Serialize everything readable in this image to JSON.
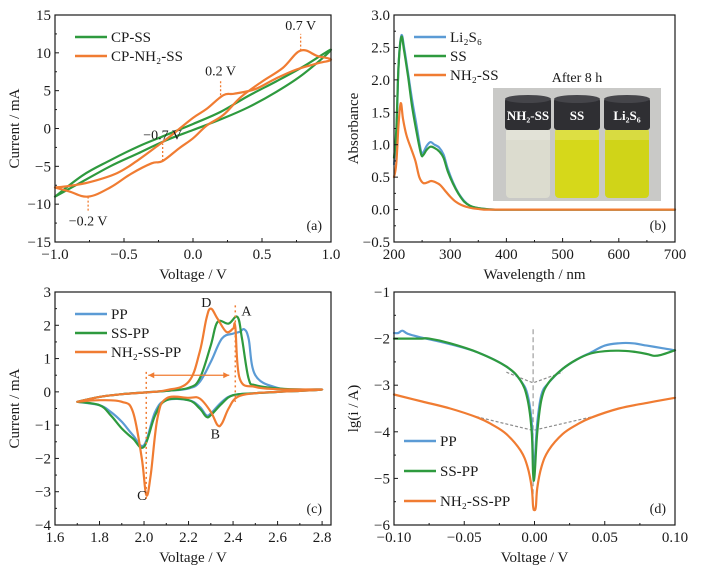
{
  "colors": {
    "blue": "#5b9bd5",
    "green": "#2e9a3e",
    "orange": "#f07c32",
    "gray_dash": "#8c8c8c"
  },
  "chart_data": [
    {
      "id": "a",
      "type": "line",
      "panel_label": "(a)",
      "xlabel": "Voltage / V",
      "ylabel": "Current / mA",
      "xlim": [
        -1.0,
        1.0
      ],
      "ylim": [
        -15,
        15
      ],
      "xticks": [
        -1.0,
        -0.5,
        0.0,
        0.5,
        1.0
      ],
      "xtick_labels": [
        "−1.0",
        "−0.5",
        "0.0",
        "0.5",
        "1.0"
      ],
      "yticks": [
        -15,
        -10,
        -5,
        0,
        5,
        10,
        15
      ],
      "ytick_labels": [
        "−15",
        "−10",
        "−5",
        "0",
        "5",
        "10",
        "15"
      ],
      "legend_position": "top-left",
      "series": [
        {
          "name": "CP-SS",
          "color_key": "green",
          "x": [
            -1.0,
            -0.8,
            -0.6,
            -0.4,
            -0.2,
            0.0,
            0.2,
            0.4,
            0.6,
            0.8,
            1.0,
            0.8,
            0.6,
            0.4,
            0.2,
            0.0,
            -0.2,
            -0.4,
            -0.6,
            -0.8,
            -1.0
          ],
          "y": [
            -9.0,
            -7.0,
            -5.0,
            -3.3,
            -1.6,
            -0.2,
            1.2,
            2.8,
            4.8,
            7.2,
            10.4,
            8.2,
            6.2,
            4.3,
            2.2,
            0.6,
            -0.9,
            -2.4,
            -4.2,
            -6.2,
            -9.0
          ]
        },
        {
          "name": "CP-NH₂-SS",
          "color_key": "orange",
          "x": [
            -1.0,
            -0.9,
            -0.76,
            -0.6,
            -0.45,
            -0.3,
            -0.22,
            -0.1,
            0.0,
            0.1,
            0.22,
            0.35,
            0.5,
            0.65,
            0.78,
            0.9,
            1.0,
            0.9,
            0.75,
            0.6,
            0.45,
            0.3,
            0.22,
            0.1,
            0.0,
            -0.15,
            -0.25,
            -0.4,
            -0.55,
            -0.75,
            -0.9,
            -1.0
          ],
          "y": [
            -7.8,
            -8.3,
            -9.0,
            -7.8,
            -6.0,
            -4.6,
            -4.3,
            -2.6,
            -1.3,
            0.4,
            1.8,
            4.2,
            6.2,
            8.0,
            10.3,
            9.6,
            9.1,
            8.6,
            7.8,
            6.6,
            5.2,
            4.6,
            4.4,
            2.6,
            1.4,
            -0.8,
            -2.2,
            -4.2,
            -5.9,
            -7.1,
            -7.6,
            -7.8
          ]
        }
      ],
      "annotations": [
        {
          "text": "0.7 V",
          "x": 0.78,
          "y_from": 10.3,
          "y_to": 12.5
        },
        {
          "text": "0.2 V",
          "x": 0.2,
          "y_from": 4.4,
          "y_to": 6.5
        },
        {
          "text": "−0.7 V",
          "x": -0.22,
          "y_from": -4.3,
          "y_to": -2.0
        },
        {
          "text": "−0.2 V",
          "x": -0.76,
          "y_from": -9.0,
          "y_to": -11.0
        }
      ]
    },
    {
      "id": "b",
      "type": "line",
      "panel_label": "(b)",
      "xlabel": "Wavelength / nm",
      "ylabel": "Absorbance",
      "xlim": [
        200,
        700
      ],
      "ylim": [
        -0.5,
        3.0
      ],
      "xticks": [
        200,
        300,
        400,
        500,
        600,
        700
      ],
      "xtick_labels": [
        "200",
        "300",
        "400",
        "500",
        "600",
        "700"
      ],
      "yticks": [
        -0.5,
        0.0,
        0.5,
        1.0,
        1.5,
        2.0,
        2.5,
        3.0
      ],
      "ytick_labels": [
        "−0.5",
        "0.0",
        "0.5",
        "1.0",
        "1.5",
        "2.0",
        "2.5",
        "3.0"
      ],
      "legend_position": "top-left",
      "series": [
        {
          "name": "Li₂S₆",
          "color_key": "blue",
          "x": [
            200,
            204,
            208,
            213,
            218,
            225,
            232,
            240,
            248,
            252,
            258,
            265,
            272,
            280,
            288,
            296,
            305,
            315,
            325,
            335,
            345,
            360,
            380,
            400,
            500,
            600,
            700
          ],
          "y": [
            0.7,
            1.1,
            2.2,
            2.68,
            2.5,
            2.1,
            1.7,
            1.3,
            0.9,
            0.88,
            0.98,
            1.04,
            1.0,
            0.96,
            0.85,
            0.62,
            0.42,
            0.25,
            0.13,
            0.06,
            0.03,
            0.01,
            0.0,
            0.0,
            0.0,
            0.0,
            0.0
          ]
        },
        {
          "name": "SS",
          "color_key": "green",
          "x": [
            200,
            204,
            208,
            213,
            218,
            225,
            232,
            240,
            248,
            252,
            258,
            265,
            272,
            280,
            288,
            296,
            305,
            315,
            325,
            335,
            345,
            360,
            380,
            400,
            500,
            600,
            700
          ],
          "y": [
            0.8,
            1.2,
            2.2,
            2.66,
            2.45,
            2.05,
            1.6,
            1.2,
            0.86,
            0.84,
            0.92,
            0.97,
            0.95,
            0.9,
            0.8,
            0.58,
            0.4,
            0.24,
            0.12,
            0.06,
            0.03,
            0.01,
            0.0,
            0.0,
            0.0,
            0.0,
            0.0
          ]
        },
        {
          "name": "NH₂-SS",
          "color_key": "orange",
          "x": [
            200,
            204,
            208,
            212,
            216,
            222,
            230,
            238,
            245,
            252,
            260,
            266,
            274,
            282,
            290,
            300,
            310,
            320,
            330,
            340,
            350,
            360,
            380,
            400,
            500,
            600,
            700
          ],
          "y": [
            0.5,
            0.7,
            1.3,
            1.64,
            1.4,
            1.15,
            0.95,
            0.75,
            0.5,
            0.41,
            0.42,
            0.44,
            0.42,
            0.38,
            0.3,
            0.2,
            0.12,
            0.07,
            0.04,
            0.02,
            0.01,
            0.0,
            0.0,
            0.0,
            0.0,
            0.0,
            0.0
          ]
        }
      ],
      "inset": {
        "title": "After 8 h",
        "vials": [
          {
            "label": "NH₂-SS",
            "liquid_color": "#dcdccf"
          },
          {
            "label": "SS",
            "liquid_color": "#d6d81a"
          },
          {
            "label": "Li₂S₆",
            "liquid_color": "#d0d418"
          }
        ]
      }
    },
    {
      "id": "c",
      "type": "line",
      "panel_label": "(c)",
      "xlabel": "Voltage / V",
      "ylabel": "Current / mA",
      "xlim": [
        1.6,
        2.84
      ],
      "ylim": [
        -4,
        3
      ],
      "xticks": [
        1.6,
        1.8,
        2.0,
        2.2,
        2.4,
        2.6,
        2.8
      ],
      "xtick_labels": [
        "1.6",
        "1.8",
        "2.0",
        "2.2",
        "2.4",
        "2.6",
        "2.8"
      ],
      "yticks": [
        -4,
        -3,
        -2,
        -1,
        0,
        1,
        2,
        3
      ],
      "ytick_labels": [
        "−4",
        "−3",
        "−2",
        "−1",
        "0",
        "1",
        "2",
        "3"
      ],
      "legend_position": "top-left",
      "series": [
        {
          "name": "PP",
          "color_key": "blue",
          "x": [
            1.7,
            1.8,
            1.9,
            2.0,
            2.1,
            2.2,
            2.25,
            2.3,
            2.35,
            2.4,
            2.43,
            2.45,
            2.47,
            2.5,
            2.6,
            2.7,
            2.8,
            2.7,
            2.6,
            2.5,
            2.4,
            2.35,
            2.3,
            2.28,
            2.25,
            2.2,
            2.1,
            2.05,
            2.0,
            1.95,
            1.9,
            1.85,
            1.8,
            1.7
          ],
          "y": [
            -0.3,
            -0.15,
            -0.07,
            -0.02,
            0.03,
            0.1,
            0.3,
            0.9,
            1.6,
            1.75,
            1.8,
            1.88,
            1.6,
            0.5,
            0.12,
            0.07,
            0.07,
            0.03,
            0.0,
            -0.04,
            -0.1,
            -0.3,
            -0.65,
            -0.7,
            -0.45,
            -0.25,
            -0.25,
            -0.6,
            -1.6,
            -1.3,
            -0.9,
            -0.6,
            -0.4,
            -0.3
          ]
        },
        {
          "name": "SS-PP",
          "color_key": "green",
          "x": [
            1.7,
            1.8,
            1.9,
            2.0,
            2.1,
            2.2,
            2.25,
            2.3,
            2.33,
            2.38,
            2.42,
            2.44,
            2.47,
            2.5,
            2.6,
            2.7,
            2.8,
            2.7,
            2.6,
            2.5,
            2.4,
            2.35,
            2.3,
            2.28,
            2.25,
            2.2,
            2.1,
            2.05,
            2.0,
            1.95,
            1.9,
            1.85,
            1.8,
            1.7
          ],
          "y": [
            -0.3,
            -0.15,
            -0.07,
            -0.02,
            0.03,
            0.12,
            0.4,
            1.4,
            2.1,
            2.05,
            2.25,
            1.6,
            0.4,
            0.2,
            0.1,
            0.07,
            0.07,
            0.03,
            0.0,
            -0.04,
            -0.1,
            -0.35,
            -0.7,
            -0.75,
            -0.5,
            -0.25,
            -0.25,
            -0.7,
            -1.65,
            -1.4,
            -1.1,
            -0.7,
            -0.4,
            -0.3
          ]
        },
        {
          "name": "NH₂-SS-PP",
          "color_key": "orange",
          "x": [
            1.7,
            1.8,
            1.9,
            2.0,
            2.1,
            2.2,
            2.25,
            2.28,
            2.3,
            2.33,
            2.37,
            2.4,
            2.41,
            2.43,
            2.5,
            2.6,
            2.7,
            2.8,
            2.7,
            2.6,
            2.5,
            2.42,
            2.38,
            2.35,
            2.33,
            2.3,
            2.25,
            2.2,
            2.1,
            2.06,
            2.03,
            2.01,
            1.99,
            1.95,
            1.9,
            1.8,
            1.7
          ],
          "y": [
            -0.3,
            -0.15,
            -0.07,
            -0.02,
            0.05,
            0.3,
            1.2,
            2.2,
            2.5,
            2.2,
            1.8,
            1.9,
            1.95,
            0.4,
            0.15,
            0.08,
            0.07,
            0.07,
            0.03,
            0.0,
            -0.04,
            -0.15,
            -0.5,
            -0.95,
            -1.0,
            -0.6,
            -0.2,
            -0.18,
            -0.2,
            -0.8,
            -2.5,
            -3.1,
            -2.0,
            -0.6,
            -0.3,
            -0.25,
            -0.3
          ]
        }
      ],
      "annotations": [
        {
          "text": "A",
          "x": 2.46,
          "y": 2.3
        },
        {
          "text": "B",
          "x": 2.32,
          "y": -1.4
        },
        {
          "text": "C",
          "x": 1.99,
          "y": -3.25
        },
        {
          "text": "D",
          "x": 2.28,
          "y": 2.55
        }
      ],
      "guides": {
        "vline_x1": 2.01,
        "vline_x2": 2.41,
        "arrow_y": 0.5
      }
    },
    {
      "id": "d",
      "type": "line",
      "panel_label": "(d)",
      "xlabel": "Voltage / V",
      "ylabel": "lg(i / A)",
      "xlim": [
        -0.1,
        0.1
      ],
      "ylim": [
        -6,
        -1
      ],
      "xticks": [
        -0.1,
        -0.05,
        0.0,
        0.05,
        0.1
      ],
      "xtick_labels": [
        "−0.10",
        "−0.05",
        "0.00",
        "0.05",
        "0.10"
      ],
      "yticks": [
        -6,
        -5,
        -4,
        -3,
        -2,
        -1
      ],
      "ytick_labels": [
        "−6",
        "−5",
        "−4",
        "−3",
        "−2",
        "−1"
      ],
      "legend_position": "bottom-left",
      "series": [
        {
          "name": "PP",
          "color_key": "blue",
          "x": [
            -0.1,
            -0.097,
            -0.094,
            -0.09,
            -0.08,
            -0.06,
            -0.04,
            -0.02,
            -0.01,
            -0.005,
            -0.002,
            -0.001,
            0.0,
            0.002,
            0.005,
            0.01,
            0.02,
            0.03,
            0.04,
            0.05,
            0.06,
            0.07,
            0.08,
            0.09,
            0.1
          ],
          "y": [
            -1.88,
            -1.88,
            -1.83,
            -1.9,
            -1.98,
            -2.12,
            -2.3,
            -2.6,
            -2.9,
            -3.2,
            -3.8,
            -4.6,
            -4.7,
            -3.8,
            -3.2,
            -2.95,
            -2.65,
            -2.45,
            -2.3,
            -2.15,
            -2.1,
            -2.1,
            -2.15,
            -2.2,
            -2.25
          ]
        },
        {
          "name": "SS-PP",
          "color_key": "green",
          "x": [
            -0.1,
            -0.09,
            -0.08,
            -0.075,
            -0.06,
            -0.04,
            -0.02,
            -0.01,
            -0.005,
            -0.002,
            -0.001,
            0.0,
            0.002,
            0.005,
            0.01,
            0.02,
            0.03,
            0.04,
            0.05,
            0.06,
            0.07,
            0.08,
            0.085,
            0.09,
            0.1
          ],
          "y": [
            -2.0,
            -2.0,
            -2.0,
            -2.0,
            -2.1,
            -2.3,
            -2.6,
            -2.9,
            -3.3,
            -4.0,
            -4.9,
            -4.95,
            -4.0,
            -3.3,
            -2.95,
            -2.65,
            -2.45,
            -2.32,
            -2.27,
            -2.26,
            -2.28,
            -2.33,
            -2.37,
            -2.35,
            -2.25
          ]
        },
        {
          "name": "NH₂-SS-PP",
          "color_key": "orange",
          "x": [
            -0.1,
            -0.08,
            -0.06,
            -0.04,
            -0.03,
            -0.02,
            -0.01,
            -0.005,
            -0.002,
            -0.001,
            0.0,
            0.001,
            0.002,
            0.005,
            0.01,
            0.02,
            0.03,
            0.04,
            0.06,
            0.08,
            0.1
          ],
          "y": [
            -3.2,
            -3.35,
            -3.5,
            -3.7,
            -3.85,
            -4.05,
            -4.4,
            -4.75,
            -5.2,
            -5.6,
            -5.68,
            -5.6,
            -5.2,
            -4.75,
            -4.4,
            -4.05,
            -3.85,
            -3.7,
            -3.5,
            -3.38,
            -3.27
          ]
        }
      ],
      "tafel_guides": [
        {
          "x": [
            -0.02,
            -0.001,
            0.02
          ],
          "y": [
            -2.72,
            -2.95,
            -2.72
          ]
        },
        {
          "x": [
            -0.045,
            -0.001,
            0.045
          ],
          "y": [
            -3.65,
            -3.97,
            -3.65
          ]
        }
      ],
      "center_guide": {
        "x": -0.001,
        "y_top": -1.8,
        "y_bottom": -5.7
      }
    }
  ]
}
